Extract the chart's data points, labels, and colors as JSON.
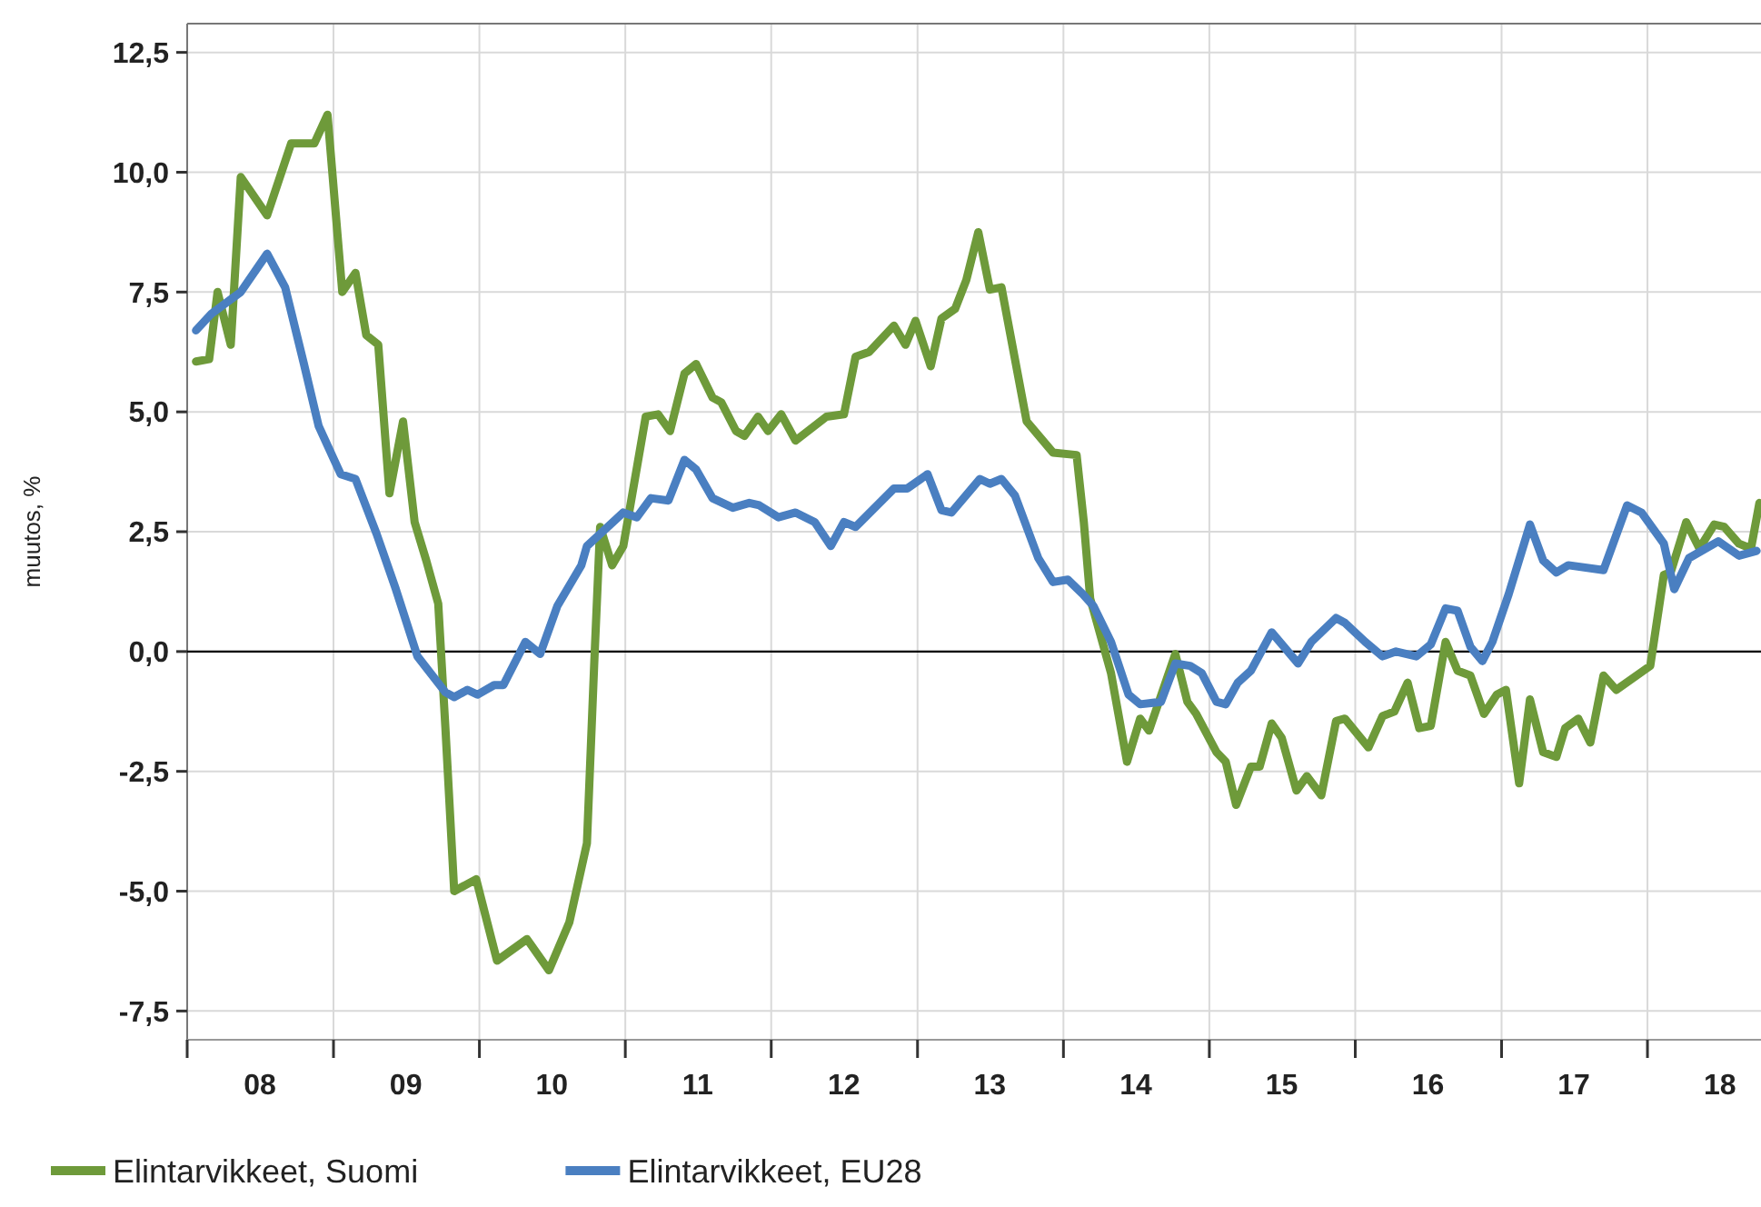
{
  "chart_data": {
    "type": "line",
    "ylabel": "muutos, %",
    "xlim": [
      "2008-01-01",
      "2018-10-12"
    ],
    "ylim": [
      -8.1,
      13.1
    ],
    "xticks": [
      {
        "value": "2008-01-01",
        "label": null
      },
      {
        "value": "2008-07-01",
        "label": "08"
      },
      {
        "value": "2009-01-01",
        "label": null
      },
      {
        "value": "2009-07-01",
        "label": "09"
      },
      {
        "value": "2010-01-01",
        "label": null
      },
      {
        "value": "2010-07-01",
        "label": "10"
      },
      {
        "value": "2011-01-01",
        "label": null
      },
      {
        "value": "2011-07-01",
        "label": "11"
      },
      {
        "value": "2012-01-01",
        "label": null
      },
      {
        "value": "2012-07-01",
        "label": "12"
      },
      {
        "value": "2013-01-01",
        "label": null
      },
      {
        "value": "2013-07-01",
        "label": "13"
      },
      {
        "value": "2014-01-01",
        "label": null
      },
      {
        "value": "2014-07-01",
        "label": "14"
      },
      {
        "value": "2015-01-01",
        "label": null
      },
      {
        "value": "2015-07-01",
        "label": "15"
      },
      {
        "value": "2016-01-01",
        "label": null
      },
      {
        "value": "2016-07-01",
        "label": "16"
      },
      {
        "value": "2017-01-01",
        "label": null
      },
      {
        "value": "2017-07-01",
        "label": "17"
      },
      {
        "value": "2018-01-01",
        "label": null
      },
      {
        "value": "2018-07-01",
        "label": "18"
      }
    ],
    "yticks": [
      {
        "value": -7.5,
        "label": "-7,5"
      },
      {
        "value": -5,
        "label": "-5,0"
      },
      {
        "value": -2.5,
        "label": "-2,5"
      },
      {
        "value": 0,
        "label": "0,0"
      },
      {
        "value": 2.5,
        "label": "2,5"
      },
      {
        "value": 5,
        "label": "5,0"
      },
      {
        "value": 7.5,
        "label": "7,5"
      },
      {
        "value": 10,
        "label": "10,0"
      },
      {
        "value": 12.5,
        "label": "12,5"
      }
    ],
    "grid": true,
    "legend": "bottom left",
    "line_style": "solid",
    "marker": "none",
    "ref_lines": [
      {
        "axis": "y",
        "value": 0,
        "label": null,
        "color": "#000000"
      }
    ],
    "series": [
      {
        "name": "Elintarvikkeet, Suomi",
        "color": "#6e9a3a",
        "x": [
          "2008-01-23",
          "2008-02-25",
          "2008-03-17",
          "2008-04-19",
          "2008-05-14",
          "2008-07-19",
          "2008-09-17",
          "2008-11-14",
          "2008-12-17",
          "2009-01-23",
          "2009-02-25",
          "2009-03-24",
          "2009-04-23",
          "2009-05-21",
          "2009-06-24",
          "2009-07-23",
          "2009-08-21",
          "2009-09-20",
          "2009-10-08",
          "2009-10-30",
          "2009-12-24",
          "2010-02-14",
          "2010-04-30",
          "2010-06-24",
          "2010-08-14",
          "2010-09-27",
          "2010-10-15",
          "2010-10-30",
          "2010-11-29",
          "2010-12-27",
          "2011-02-21",
          "2011-03-24",
          "2011-04-23",
          "2011-05-29",
          "2011-06-27",
          "2011-08-07",
          "2011-08-29",
          "2011-10-05",
          "2011-10-26",
          "2011-11-29",
          "2011-12-24",
          "2012-01-26",
          "2012-03-02",
          "2012-05-18",
          "2012-07-01",
          "2012-07-30",
          "2012-09-02",
          "2012-11-03",
          "2012-12-02",
          "2012-12-27",
          "2013-02-03",
          "2013-03-02",
          "2013-04-05",
          "2013-05-03",
          "2013-06-02",
          "2013-07-01",
          "2013-07-30",
          "2013-10-01",
          "2013-12-06",
          "2014-02-03",
          "2014-02-21",
          "2014-03-09",
          "2014-03-17",
          "2014-04-30",
          "2014-06-09",
          "2014-07-12",
          "2014-08-03",
          "2014-10-08",
          "2014-11-07",
          "2014-11-29",
          "2015-01-19",
          "2015-02-11",
          "2015-03-09",
          "2015-04-15",
          "2015-05-07",
          "2015-06-06",
          "2015-07-01",
          "2015-08-07",
          "2015-09-02",
          "2015-10-08",
          "2015-11-14",
          "2015-12-06",
          "2016-02-03",
          "2016-03-09",
          "2016-04-08",
          "2016-05-11",
          "2016-06-09",
          "2016-07-08",
          "2016-08-14",
          "2016-09-13",
          "2016-10-15",
          "2016-11-18",
          "2016-12-20",
          "2017-01-12",
          "2017-02-14",
          "2017-03-13",
          "2017-04-15",
          "2017-05-18",
          "2017-06-09",
          "2017-07-12",
          "2017-08-11",
          "2017-09-13",
          "2017-10-15",
          "2018-01-08",
          "2018-02-11",
          "2018-02-28",
          "2018-04-08",
          "2018-05-11",
          "2018-06-17",
          "2018-07-12",
          "2018-08-18",
          "2018-09-17",
          "2018-10-08"
        ],
        "values": [
          6.05,
          6.1,
          7.5,
          6.4,
          9.9,
          9.1,
          10.6,
          10.6,
          11.2,
          7.5,
          7.9,
          6.6,
          6.4,
          3.3,
          4.8,
          2.7,
          1.9,
          1.0,
          -1.6,
          -5.0,
          -4.75,
          -6.45,
          -6.0,
          -6.65,
          -5.65,
          -4.0,
          -0.3,
          2.6,
          1.8,
          2.2,
          4.9,
          4.95,
          4.6,
          5.8,
          6.0,
          5.3,
          5.2,
          4.6,
          4.5,
          4.9,
          4.6,
          4.95,
          4.4,
          4.9,
          4.95,
          6.15,
          6.25,
          6.8,
          6.4,
          6.9,
          5.95,
          6.95,
          7.15,
          7.75,
          8.75,
          7.55,
          7.6,
          4.8,
          4.15,
          4.1,
          2.7,
          1.1,
          0.87,
          -0.45,
          -2.3,
          -1.4,
          -1.65,
          -0.05,
          -1.05,
          -1.3,
          -2.1,
          -2.3,
          -3.2,
          -2.4,
          -2.4,
          -1.5,
          -1.8,
          -2.9,
          -2.6,
          -3.0,
          -1.45,
          -1.4,
          -2.0,
          -1.35,
          -1.25,
          -0.65,
          -1.6,
          -1.55,
          0.2,
          -0.4,
          -0.5,
          -1.3,
          -0.9,
          -0.8,
          -2.75,
          -1.0,
          -2.1,
          -2.2,
          -1.6,
          -1.4,
          -1.9,
          -0.5,
          -0.8,
          -0.3,
          1.6,
          1.65,
          2.7,
          2.15,
          2.65,
          2.6,
          2.25,
          2.15,
          3.1
        ]
      },
      {
        "name": "Elintarvikkeet, EU28",
        "color": "#4a7fc1",
        "x": [
          "2008-01-23",
          "2008-03-02",
          "2008-05-14",
          "2008-07-19",
          "2008-09-02",
          "2008-10-19",
          "2008-11-25",
          "2009-01-19",
          "2009-02-25",
          "2009-04-19",
          "2009-06-06",
          "2009-07-30",
          "2009-10-08",
          "2009-10-30",
          "2009-12-02",
          "2009-12-27",
          "2010-02-07",
          "2010-03-02",
          "2010-04-26",
          "2010-06-02",
          "2010-07-15",
          "2010-09-13",
          "2010-09-27",
          "2010-12-27",
          "2011-01-30",
          "2011-03-06",
          "2011-04-19",
          "2011-05-29",
          "2011-06-27",
          "2011-08-07",
          "2011-09-27",
          "2011-11-07",
          "2011-12-02",
          "2012-01-19",
          "2012-03-02",
          "2012-04-19",
          "2012-05-29",
          "2012-07-01",
          "2012-07-30",
          "2012-11-03",
          "2012-12-06",
          "2013-01-26",
          "2013-03-02",
          "2013-03-27",
          "2013-06-06",
          "2013-07-01",
          "2013-07-30",
          "2013-09-02",
          "2013-10-30",
          "2013-12-06",
          "2014-01-12",
          "2014-02-18",
          "2014-03-17",
          "2014-04-30",
          "2014-06-13",
          "2014-07-12",
          "2014-09-02",
          "2014-10-08",
          "2014-11-14",
          "2014-12-13",
          "2015-01-19",
          "2015-02-11",
          "2015-03-13",
          "2015-04-15",
          "2015-06-06",
          "2015-08-11",
          "2015-09-13",
          "2015-11-14",
          "2015-12-06",
          "2016-01-26",
          "2016-03-09",
          "2016-04-12",
          "2016-06-02",
          "2016-07-08",
          "2016-08-14",
          "2016-09-13",
          "2016-10-15",
          "2016-11-14",
          "2016-12-09",
          "2017-01-19",
          "2017-03-13",
          "2017-04-15",
          "2017-05-18",
          "2017-06-17",
          "2017-09-13",
          "2017-11-11",
          "2017-12-17",
          "2018-02-11",
          "2018-03-09",
          "2018-04-15",
          "2018-06-27",
          "2018-08-18",
          "2018-10-01"
        ],
        "values": [
          6.7,
          7.05,
          7.5,
          8.3,
          7.6,
          6.0,
          4.7,
          3.7,
          3.6,
          2.45,
          1.3,
          -0.1,
          -0.85,
          -0.95,
          -0.8,
          -0.9,
          -0.7,
          -0.7,
          0.2,
          -0.05,
          0.95,
          1.8,
          2.2,
          2.9,
          2.8,
          3.2,
          3.15,
          4.0,
          3.8,
          3.2,
          3.0,
          3.1,
          3.05,
          2.8,
          2.9,
          2.7,
          2.2,
          2.7,
          2.6,
          3.4,
          3.4,
          3.7,
          2.95,
          2.9,
          3.6,
          3.5,
          3.6,
          3.25,
          1.95,
          1.45,
          1.5,
          1.2,
          0.95,
          0.2,
          -0.9,
          -1.1,
          -1.05,
          -0.25,
          -0.3,
          -0.45,
          -1.05,
          -1.1,
          -0.65,
          -0.4,
          0.4,
          -0.25,
          0.2,
          0.7,
          0.6,
          0.2,
          -0.1,
          0.0,
          -0.1,
          0.15,
          0.9,
          0.85,
          0.1,
          -0.2,
          0.2,
          1.2,
          2.65,
          1.9,
          1.65,
          1.8,
          1.7,
          3.05,
          2.9,
          2.25,
          1.3,
          1.95,
          2.3,
          2.0,
          2.1
        ]
      }
    ]
  }
}
